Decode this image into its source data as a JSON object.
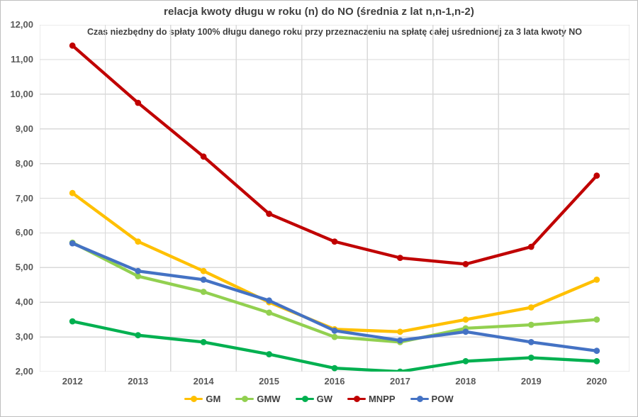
{
  "chart_data": {
    "type": "line",
    "title": "relacja kwoty długu w roku (n) do NO (średnia z lat n,n-1,n-2)",
    "subtitle": "Czas niezbędny do spłaty 100% długu danego roku przy przeznaczeniu na spłatę całej uśrednionej za 3 lata kwoty NO",
    "categories": [
      "2012",
      "2013",
      "2014",
      "2015",
      "2016",
      "2017",
      "2018",
      "2019",
      "2020"
    ],
    "series": [
      {
        "name": "GM",
        "color": "#FFC000",
        "values": [
          7.15,
          5.75,
          4.9,
          4.0,
          3.22,
          3.15,
          3.5,
          3.85,
          4.65
        ]
      },
      {
        "name": "GMW",
        "color": "#92D050",
        "values": [
          5.72,
          4.75,
          4.3,
          3.7,
          3.0,
          2.85,
          3.25,
          3.35,
          3.5
        ]
      },
      {
        "name": "GW",
        "color": "#00B050",
        "values": [
          3.45,
          3.05,
          2.85,
          2.5,
          2.1,
          2.0,
          2.3,
          2.4,
          2.3
        ]
      },
      {
        "name": "MNPP",
        "color": "#C00000",
        "values": [
          11.4,
          9.75,
          8.2,
          6.55,
          5.75,
          5.28,
          5.1,
          5.6,
          7.65
        ]
      },
      {
        "name": "POW",
        "color": "#4472C4",
        "values": [
          5.7,
          4.9,
          4.65,
          4.05,
          3.18,
          2.9,
          3.15,
          2.85,
          2.6
        ]
      }
    ],
    "ylim": [
      2,
      12
    ],
    "y_ticks": [
      "12,00",
      "11,00",
      "10,00",
      "9,00",
      "8,00",
      "7,00",
      "6,00",
      "5,00",
      "4,00",
      "3,00",
      "2,00"
    ],
    "grid": true,
    "legend_position": "bottom"
  },
  "styles": {
    "grid_color": "#D9D9D9",
    "axis_text_color": "#595959",
    "title_color": "#3F3F3F",
    "border_color": "#BFBFBF",
    "background": "#FFFFFF"
  }
}
